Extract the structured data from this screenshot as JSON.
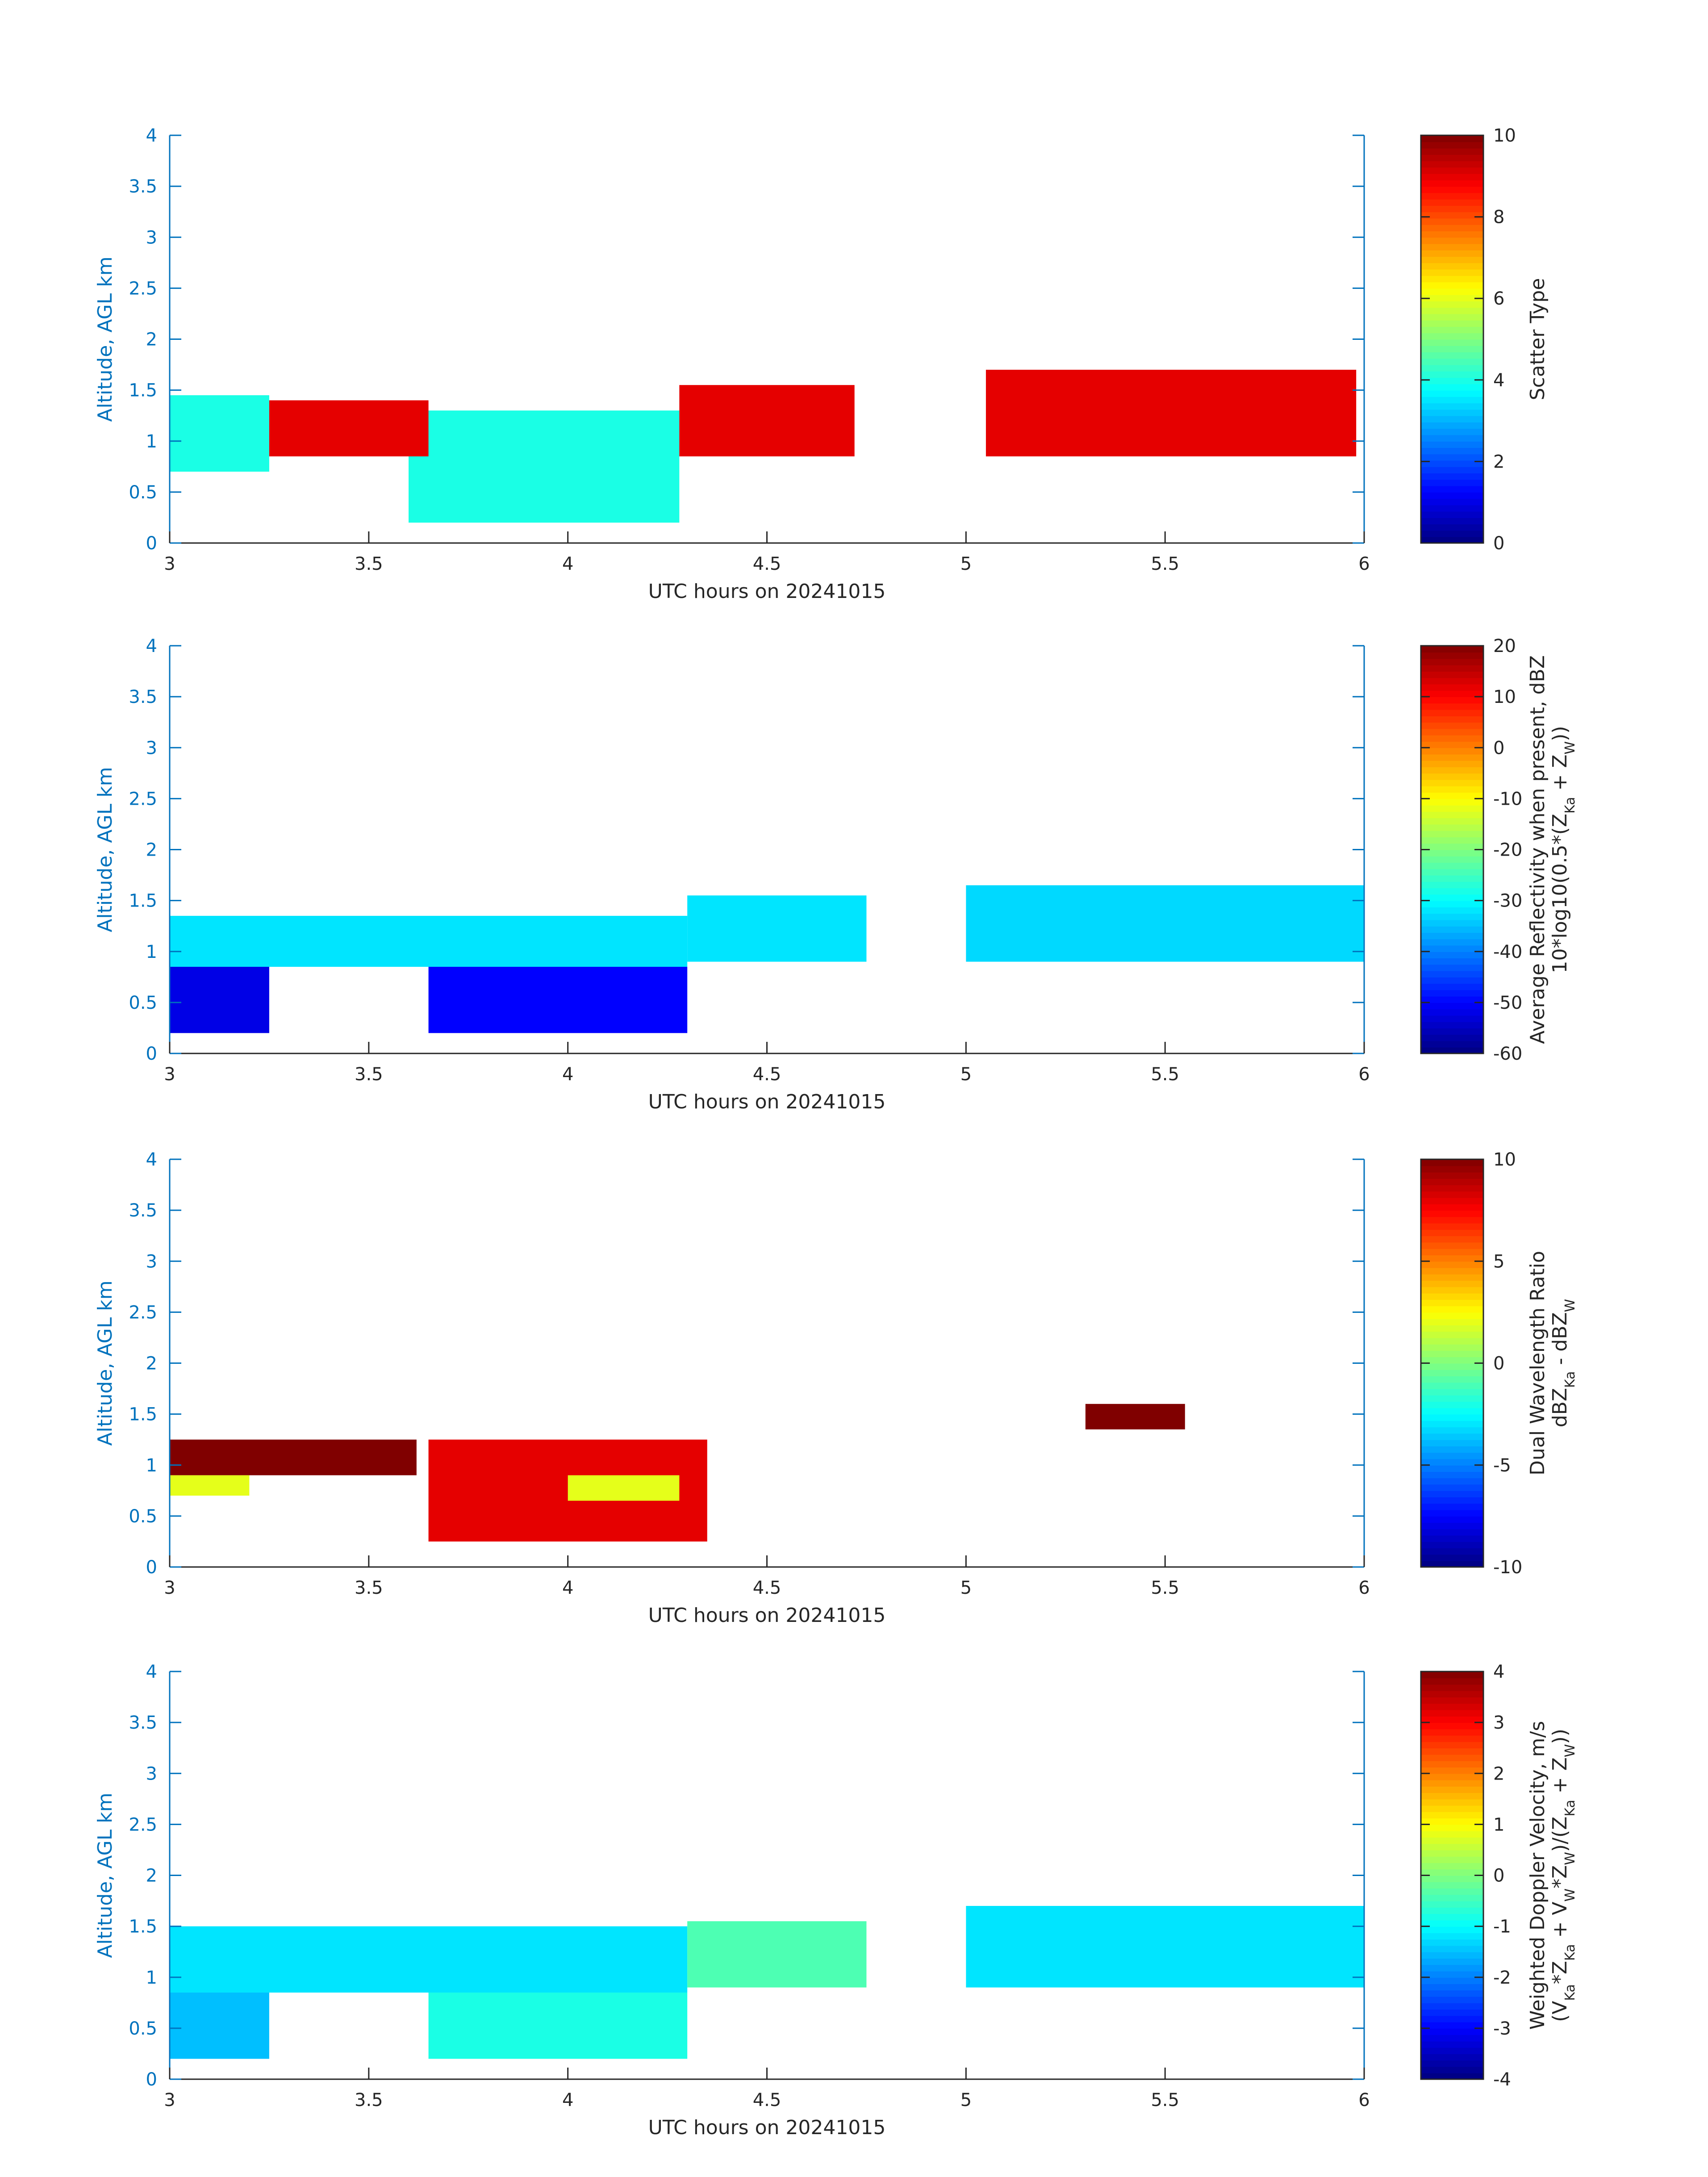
{
  "chart_data": [
    {
      "type": "heatmap",
      "xlabel": "UTC hours on 20241015",
      "ylabel": "Altitude, AGL km",
      "xlim": [
        3,
        6
      ],
      "ylim": [
        0,
        4
      ],
      "xticks": [
        "3",
        "3.5",
        "4",
        "4.5",
        "5",
        "5.5",
        "6"
      ],
      "yticks": [
        "0",
        "0.5",
        "1",
        "1.5",
        "2",
        "2.5",
        "3",
        "3.5",
        "4"
      ],
      "colorbar": {
        "label": [
          "Scatter Type"
        ],
        "ticks": [
          "0",
          "2",
          "4",
          "6",
          "8",
          "10"
        ],
        "range": [
          0,
          10
        ]
      },
      "regions": [
        {
          "x": [
            3.0,
            3.25
          ],
          "y": [
            0.7,
            1.45
          ],
          "value": 4
        },
        {
          "x": [
            3.6,
            4.28
          ],
          "y": [
            0.2,
            1.3
          ],
          "value": 4
        },
        {
          "x": [
            3.25,
            3.65
          ],
          "y": [
            0.85,
            1.4
          ],
          "value": 9
        },
        {
          "x": [
            4.28,
            4.72
          ],
          "y": [
            0.85,
            1.55
          ],
          "value": 9
        },
        {
          "x": [
            5.05,
            5.98
          ],
          "y": [
            0.85,
            1.7
          ],
          "value": 9
        }
      ]
    },
    {
      "type": "heatmap",
      "xlabel": "UTC hours on 20241015",
      "ylabel": "Altitude, AGL km",
      "xlim": [
        3,
        6
      ],
      "ylim": [
        0,
        4
      ],
      "xticks": [
        "3",
        "3.5",
        "4",
        "4.5",
        "5",
        "5.5",
        "6"
      ],
      "yticks": [
        "0",
        "0.5",
        "1",
        "1.5",
        "2",
        "2.5",
        "3",
        "3.5",
        "4"
      ],
      "colorbar": {
        "label": [
          "Average Reflectivity when present, dBZ",
          "10*log10(0.5*(Z_Ka + Z_W))"
        ],
        "ticks": [
          "-60",
          "-50",
          "-40",
          "-30",
          "-20",
          "-10",
          "0",
          "10",
          "20"
        ],
        "range": [
          -60,
          20
        ]
      },
      "regions": [
        {
          "x": [
            3.0,
            4.3
          ],
          "y": [
            0.85,
            1.35
          ],
          "value": -32
        },
        {
          "x": [
            3.0,
            3.25
          ],
          "y": [
            0.2,
            0.85
          ],
          "value": -52
        },
        {
          "x": [
            3.65,
            4.3
          ],
          "y": [
            0.2,
            0.85
          ],
          "value": -50
        },
        {
          "x": [
            4.3,
            4.75
          ],
          "y": [
            0.9,
            1.55
          ],
          "value": -32
        },
        {
          "x": [
            5.0,
            6.0
          ],
          "y": [
            0.9,
            1.65
          ],
          "value": -33
        }
      ]
    },
    {
      "type": "heatmap",
      "xlabel": "UTC hours on 20241015",
      "ylabel": "Altitude, AGL km",
      "xlim": [
        3,
        6
      ],
      "ylim": [
        0,
        4
      ],
      "xticks": [
        "3",
        "3.5",
        "4",
        "4.5",
        "5",
        "5.5",
        "6"
      ],
      "yticks": [
        "0",
        "0.5",
        "1",
        "1.5",
        "2",
        "2.5",
        "3",
        "3.5",
        "4"
      ],
      "colorbar": {
        "label": [
          "Dual Wavelength Ratio",
          "dBZ_Ka - dBZ_W"
        ],
        "ticks": [
          "-10",
          "-5",
          "0",
          "5",
          "10"
        ],
        "range": [
          -10,
          10
        ]
      },
      "regions": [
        {
          "x": [
            3.0,
            3.62
          ],
          "y": [
            0.9,
            1.25
          ],
          "value": 10
        },
        {
          "x": [
            3.0,
            3.2
          ],
          "y": [
            0.7,
            0.9
          ],
          "value": 2
        },
        {
          "x": [
            3.65,
            4.35
          ],
          "y": [
            0.25,
            1.25
          ],
          "value": 8
        },
        {
          "x": [
            4.0,
            4.28
          ],
          "y": [
            0.65,
            0.9
          ],
          "value": 2
        },
        {
          "x": [
            5.3,
            5.55
          ],
          "y": [
            1.35,
            1.6
          ],
          "value": 10
        }
      ]
    },
    {
      "type": "heatmap",
      "xlabel": "UTC hours on 20241015",
      "ylabel": "Altitude, AGL km",
      "xlim": [
        3,
        6
      ],
      "ylim": [
        0,
        4
      ],
      "xticks": [
        "3",
        "3.5",
        "4",
        "4.5",
        "5",
        "5.5",
        "6"
      ],
      "yticks": [
        "0",
        "0.5",
        "1",
        "1.5",
        "2",
        "2.5",
        "3",
        "3.5",
        "4"
      ],
      "colorbar": {
        "label": [
          "Weighted Doppler Velocity, m/s",
          "(V_Ka*Z_Ka + V_W*Z_W)/(Z_Ka + Z_W))"
        ],
        "ticks": [
          "-4",
          "-3",
          "-2",
          "-1",
          "0",
          "1",
          "2",
          "3",
          "4"
        ],
        "range": [
          -4,
          4
        ]
      },
      "regions": [
        {
          "x": [
            3.0,
            4.3
          ],
          "y": [
            0.85,
            1.5
          ],
          "value": -1.2
        },
        {
          "x": [
            3.0,
            3.25
          ],
          "y": [
            0.2,
            0.85
          ],
          "value": -1.5
        },
        {
          "x": [
            3.65,
            4.3
          ],
          "y": [
            0.2,
            0.85
          ],
          "value": -0.8
        },
        {
          "x": [
            4.3,
            4.75
          ],
          "y": [
            0.9,
            1.55
          ],
          "value": -0.4
        },
        {
          "x": [
            5.0,
            6.0
          ],
          "y": [
            0.9,
            1.7
          ],
          "value": -1.2
        }
      ]
    }
  ]
}
